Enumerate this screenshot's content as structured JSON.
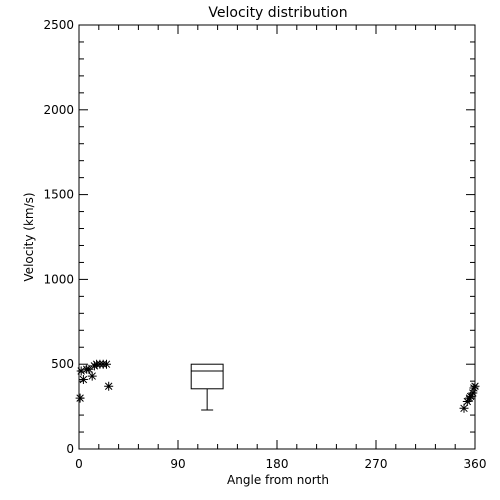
{
  "chart_data": {
    "type": "scatter",
    "title": "Velocity distribution",
    "xlabel": "Angle from north",
    "ylabel": "Velocity (km/s)",
    "xlim": [
      0,
      360
    ],
    "ylim": [
      0,
      2500
    ],
    "x_ticks": [
      0,
      90,
      180,
      270,
      360
    ],
    "y_ticks": [
      0,
      500,
      1000,
      1500,
      2000,
      2500
    ],
    "marker": "asterisk",
    "grid": false,
    "points": [
      {
        "x": 1,
        "y": 300
      },
      {
        "x": 2,
        "y": 460
      },
      {
        "x": 4,
        "y": 410
      },
      {
        "x": 7,
        "y": 470
      },
      {
        "x": 9,
        "y": 470
      },
      {
        "x": 12,
        "y": 430
      },
      {
        "x": 14,
        "y": 490
      },
      {
        "x": 16,
        "y": 500
      },
      {
        "x": 19,
        "y": 500
      },
      {
        "x": 22,
        "y": 500
      },
      {
        "x": 25,
        "y": 500
      },
      {
        "x": 27,
        "y": 370
      },
      {
        "x": 350,
        "y": 240
      },
      {
        "x": 353,
        "y": 280
      },
      {
        "x": 355,
        "y": 300
      },
      {
        "x": 356,
        "y": 310
      },
      {
        "x": 358,
        "y": 330
      },
      {
        "x": 359,
        "y": 360
      },
      {
        "x": 360,
        "y": 370
      }
    ],
    "boxplot": {
      "x_from": 102,
      "x_to": 131,
      "whisker_low": 230,
      "q1": 355,
      "median": 460,
      "q3": 500,
      "whisker_high": 500
    }
  }
}
